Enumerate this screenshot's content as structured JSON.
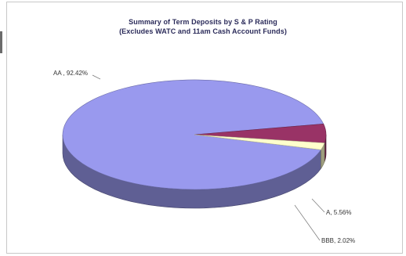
{
  "chart_data": {
    "type": "pie",
    "title": "Summary of Term Deposits by S & P Rating",
    "subtitle": "(Excludes WATC and 11am Cash Account Funds)",
    "categories": [
      "AA",
      "A",
      "BBB"
    ],
    "values": [
      92.42,
      5.56,
      2.02
    ],
    "data_labels": [
      "AA , 92.42%",
      "A, 5.56%",
      "BBB, 2.02%"
    ],
    "colors": {
      "AA": "#9999ee",
      "A": "#993366",
      "BBB": "#ffffcc"
    },
    "legend": "none",
    "style": "3d"
  }
}
